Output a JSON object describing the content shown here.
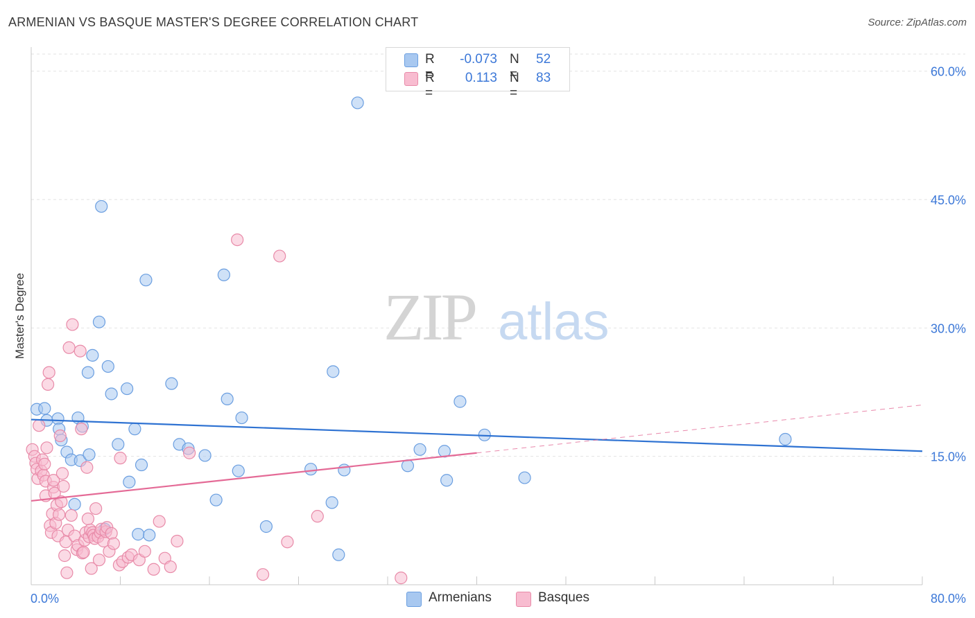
{
  "title": "ARMENIAN VS BASQUE MASTER'S DEGREE CORRELATION CHART",
  "source": "Source: ZipAtlas.com",
  "watermark": {
    "zip": "ZIP",
    "atlas": "atlas"
  },
  "legend_top": [
    {
      "r_label": "R =",
      "r_value": "-0.073",
      "n_label": "N =",
      "n_value": "52",
      "color": "#a8c8f0",
      "border": "#6a9ee0"
    },
    {
      "r_label": "R =",
      "r_value": "0.113",
      "n_label": "N =",
      "n_value": "83",
      "color": "#f8bcd0",
      "border": "#e88aa8"
    }
  ],
  "legend_bottom": [
    {
      "label": "Armenians",
      "color": "#a8c8f0",
      "border": "#6a9ee0"
    },
    {
      "label": "Basques",
      "color": "#f8bcd0",
      "border": "#e88aa8"
    }
  ],
  "chart_data": {
    "type": "scatter",
    "title": "ARMENIAN VS BASQUE MASTER'S DEGREE CORRELATION CHART",
    "xlabel": "",
    "ylabel": "Master's Degree",
    "xlim": [
      0,
      80
    ],
    "ylim": [
      0,
      62
    ],
    "x_tick_labels": [
      "0.0%",
      "80.0%"
    ],
    "y_ticks": [
      15,
      30,
      45,
      60
    ],
    "y_tick_labels": [
      "15.0%",
      "30.0%",
      "45.0%",
      "60.0%"
    ],
    "grid": true,
    "legend_position": "top-center",
    "series": [
      {
        "name": "Armenians",
        "color": "#a8c8f0",
        "stroke": "#6a9ee0",
        "line_color": "#2e72d2",
        "trend": {
          "x0": 0,
          "y0": 19.3,
          "x1": 80,
          "y1": 15.6
        },
        "points": [
          [
            0.5,
            20.5
          ],
          [
            1.2,
            20.6
          ],
          [
            1.4,
            19.2
          ],
          [
            2.4,
            19.4
          ],
          [
            2.5,
            18.2
          ],
          [
            2.7,
            16.9
          ],
          [
            3.2,
            15.5
          ],
          [
            3.6,
            14.6
          ],
          [
            3.9,
            9.4
          ],
          [
            4.2,
            19.5
          ],
          [
            4.4,
            14.5
          ],
          [
            4.6,
            18.5
          ],
          [
            5.2,
            15.2
          ],
          [
            5.1,
            24.8
          ],
          [
            5.5,
            26.8
          ],
          [
            6.1,
            30.7
          ],
          [
            6.6,
            6.5
          ],
          [
            6.3,
            44.2
          ],
          [
            6.9,
            25.5
          ],
          [
            7.2,
            22.3
          ],
          [
            7.8,
            16.4
          ],
          [
            8.6,
            22.9
          ],
          [
            8.8,
            12.0
          ],
          [
            9.3,
            18.2
          ],
          [
            9.9,
            14.0
          ],
          [
            9.6,
            5.9
          ],
          [
            10.3,
            35.6
          ],
          [
            10.6,
            5.8
          ],
          [
            12.6,
            23.5
          ],
          [
            13.3,
            16.4
          ],
          [
            14.1,
            15.9
          ],
          [
            15.6,
            15.1
          ],
          [
            16.6,
            9.9
          ],
          [
            17.3,
            36.2
          ],
          [
            17.6,
            21.7
          ],
          [
            18.6,
            13.3
          ],
          [
            18.9,
            19.5
          ],
          [
            21.1,
            6.8
          ],
          [
            25.1,
            13.5
          ],
          [
            27.0,
            9.6
          ],
          [
            27.1,
            24.9
          ],
          [
            28.1,
            13.4
          ],
          [
            27.6,
            3.5
          ],
          [
            29.3,
            56.3
          ],
          [
            33.8,
            13.9
          ],
          [
            34.9,
            15.8
          ],
          [
            37.1,
            15.6
          ],
          [
            37.3,
            12.2
          ],
          [
            38.5,
            21.4
          ],
          [
            40.7,
            17.5
          ],
          [
            44.3,
            12.5
          ],
          [
            67.7,
            17.0
          ]
        ]
      },
      {
        "name": "Basques",
        "color": "#f8bcd0",
        "stroke": "#e88aa8",
        "line_color": "#e46a96",
        "trend": {
          "x0": 0,
          "y0": 9.8,
          "x1": 40,
          "y1": 15.4
        },
        "trend_dashed": {
          "x0": 40,
          "y0": 15.4,
          "x1": 80,
          "y1": 21.0
        },
        "points": [
          [
            0.1,
            15.8
          ],
          [
            0.3,
            15.0
          ],
          [
            0.4,
            14.2
          ],
          [
            0.5,
            13.5
          ],
          [
            0.6,
            12.4
          ],
          [
            0.7,
            18.6
          ],
          [
            0.9,
            13.3
          ],
          [
            1.0,
            14.6
          ],
          [
            1.1,
            12.8
          ],
          [
            1.2,
            14.1
          ],
          [
            1.3,
            10.4
          ],
          [
            1.3,
            12.1
          ],
          [
            1.4,
            16.0
          ],
          [
            1.5,
            23.4
          ],
          [
            1.6,
            24.8
          ],
          [
            1.7,
            6.9
          ],
          [
            1.8,
            6.1
          ],
          [
            1.9,
            8.3
          ],
          [
            2.0,
            11.4
          ],
          [
            2.0,
            12.2
          ],
          [
            2.1,
            10.7
          ],
          [
            2.2,
            7.2
          ],
          [
            2.3,
            9.3
          ],
          [
            2.4,
            5.7
          ],
          [
            2.5,
            8.2
          ],
          [
            2.6,
            17.4
          ],
          [
            2.7,
            9.7
          ],
          [
            2.8,
            13.0
          ],
          [
            2.9,
            11.5
          ],
          [
            3.0,
            3.4
          ],
          [
            3.1,
            5.0
          ],
          [
            3.2,
            1.4
          ],
          [
            3.3,
            6.4
          ],
          [
            3.4,
            27.7
          ],
          [
            3.6,
            8.1
          ],
          [
            3.7,
            30.4
          ],
          [
            3.9,
            5.7
          ],
          [
            4.1,
            4.1
          ],
          [
            4.2,
            4.6
          ],
          [
            4.4,
            27.3
          ],
          [
            4.5,
            18.2
          ],
          [
            4.6,
            3.7
          ],
          [
            4.7,
            3.8
          ],
          [
            4.8,
            5.2
          ],
          [
            4.9,
            6.1
          ],
          [
            5.0,
            13.7
          ],
          [
            5.1,
            7.7
          ],
          [
            5.2,
            5.6
          ],
          [
            5.3,
            6.4
          ],
          [
            5.4,
            1.9
          ],
          [
            5.5,
            6.1
          ],
          [
            5.6,
            5.8
          ],
          [
            5.7,
            5.4
          ],
          [
            5.8,
            8.9
          ],
          [
            6.0,
            5.6
          ],
          [
            6.1,
            2.9
          ],
          [
            6.2,
            6.1
          ],
          [
            6.3,
            6.5
          ],
          [
            6.5,
            5.1
          ],
          [
            6.7,
            6.2
          ],
          [
            6.8,
            6.7
          ],
          [
            7.0,
            3.9
          ],
          [
            7.2,
            6.0
          ],
          [
            7.4,
            4.8
          ],
          [
            7.9,
            2.3
          ],
          [
            8.0,
            14.8
          ],
          [
            8.2,
            2.7
          ],
          [
            8.7,
            3.2
          ],
          [
            9.0,
            3.5
          ],
          [
            9.7,
            2.9
          ],
          [
            10.2,
            3.9
          ],
          [
            11.0,
            1.8
          ],
          [
            11.5,
            7.4
          ],
          [
            12.0,
            3.1
          ],
          [
            12.5,
            2.1
          ],
          [
            13.1,
            5.1
          ],
          [
            14.2,
            15.4
          ],
          [
            18.5,
            40.3
          ],
          [
            20.8,
            1.2
          ],
          [
            22.3,
            38.4
          ],
          [
            23.0,
            5.0
          ],
          [
            33.2,
            0.8
          ],
          [
            25.7,
            8.0
          ]
        ]
      }
    ]
  }
}
